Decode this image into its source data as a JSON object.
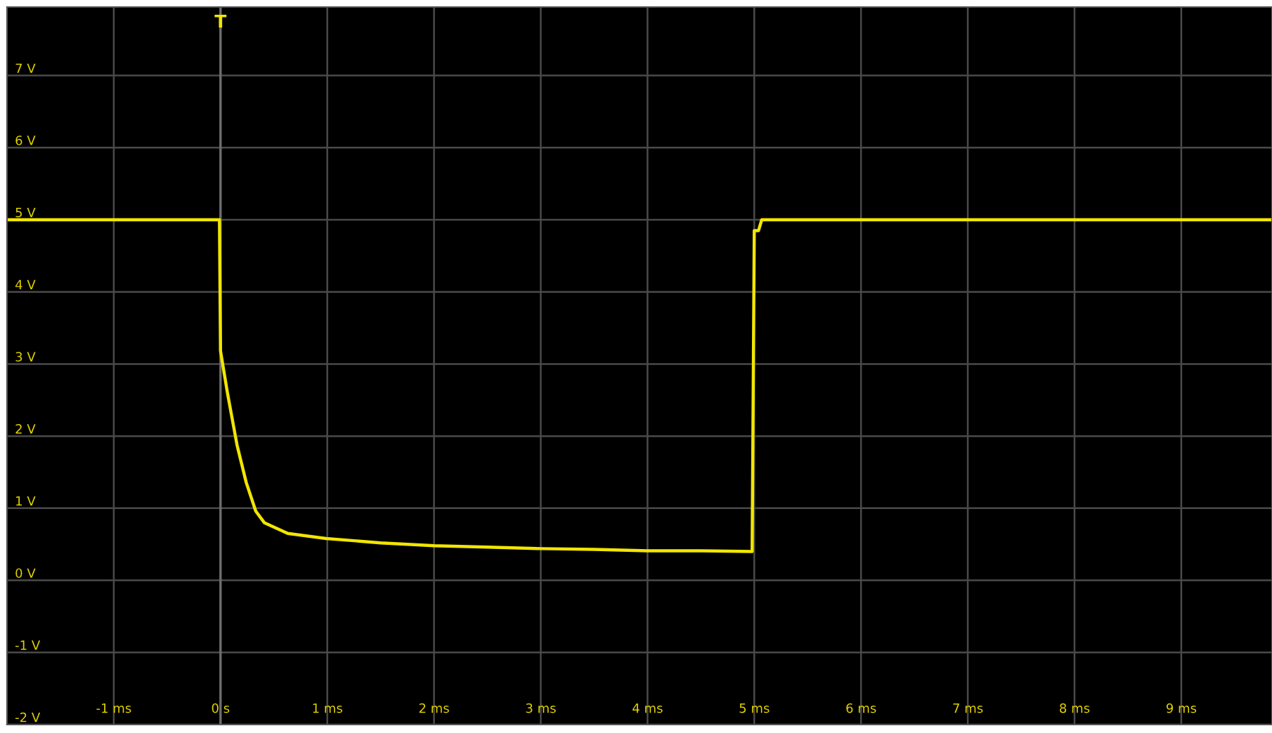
{
  "chart_data": {
    "type": "line",
    "x": [
      -2,
      -1,
      -0.01,
      0.0,
      0.066,
      0.154,
      0.24,
      0.33,
      0.41,
      0.63,
      0.99,
      1.5,
      2.0,
      2.5,
      3.0,
      3.5,
      4.0,
      4.5,
      4.98,
      5.0,
      5.04,
      5.07,
      6,
      7,
      8,
      9,
      9.85
    ],
    "series": [
      {
        "color": "#f2e600",
        "values": [
          5.0,
          5.0,
          5.0,
          3.18,
          2.59,
          1.88,
          1.36,
          0.96,
          0.8,
          0.65,
          0.58,
          0.52,
          0.48,
          0.46,
          0.44,
          0.43,
          0.41,
          0.41,
          0.4,
          4.85,
          4.85,
          5.0,
          5.0,
          5.0,
          5.0,
          5.0,
          5.0
        ]
      }
    ],
    "xlim": [
      -2,
      9.85
    ],
    "ylim": [
      -2,
      7.95
    ],
    "xticks": [
      {
        "value": -1,
        "label": "-1 ms"
      },
      {
        "value": 0,
        "label": "0 s"
      },
      {
        "value": 1,
        "label": "1 ms"
      },
      {
        "value": 2,
        "label": "2 ms"
      },
      {
        "value": 3,
        "label": "3 ms"
      },
      {
        "value": 4,
        "label": "4 ms"
      },
      {
        "value": 5,
        "label": "5 ms"
      },
      {
        "value": 6,
        "label": "6 ms"
      },
      {
        "value": 7,
        "label": "7 ms"
      },
      {
        "value": 8,
        "label": "8 ms"
      },
      {
        "value": 9,
        "label": "9 ms"
      }
    ],
    "yticks": [
      {
        "value": -2,
        "label": "-2 V"
      },
      {
        "value": -1,
        "label": "-1 V"
      },
      {
        "value": 0,
        "label": "0 V"
      },
      {
        "value": 1,
        "label": "1 V"
      },
      {
        "value": 2,
        "label": "2 V"
      },
      {
        "value": 3,
        "label": "3 V"
      },
      {
        "value": 4,
        "label": "4 V"
      },
      {
        "value": 5,
        "label": "5 V"
      },
      {
        "value": 6,
        "label": "6 V"
      },
      {
        "value": 7,
        "label": "7 V"
      }
    ],
    "ref_lines": [
      {
        "axis": "x",
        "value": 0,
        "label": "T",
        "color": "#6e6e6e"
      }
    ],
    "grid": true,
    "legend": false,
    "marker": "none",
    "line_style": "solid"
  }
}
